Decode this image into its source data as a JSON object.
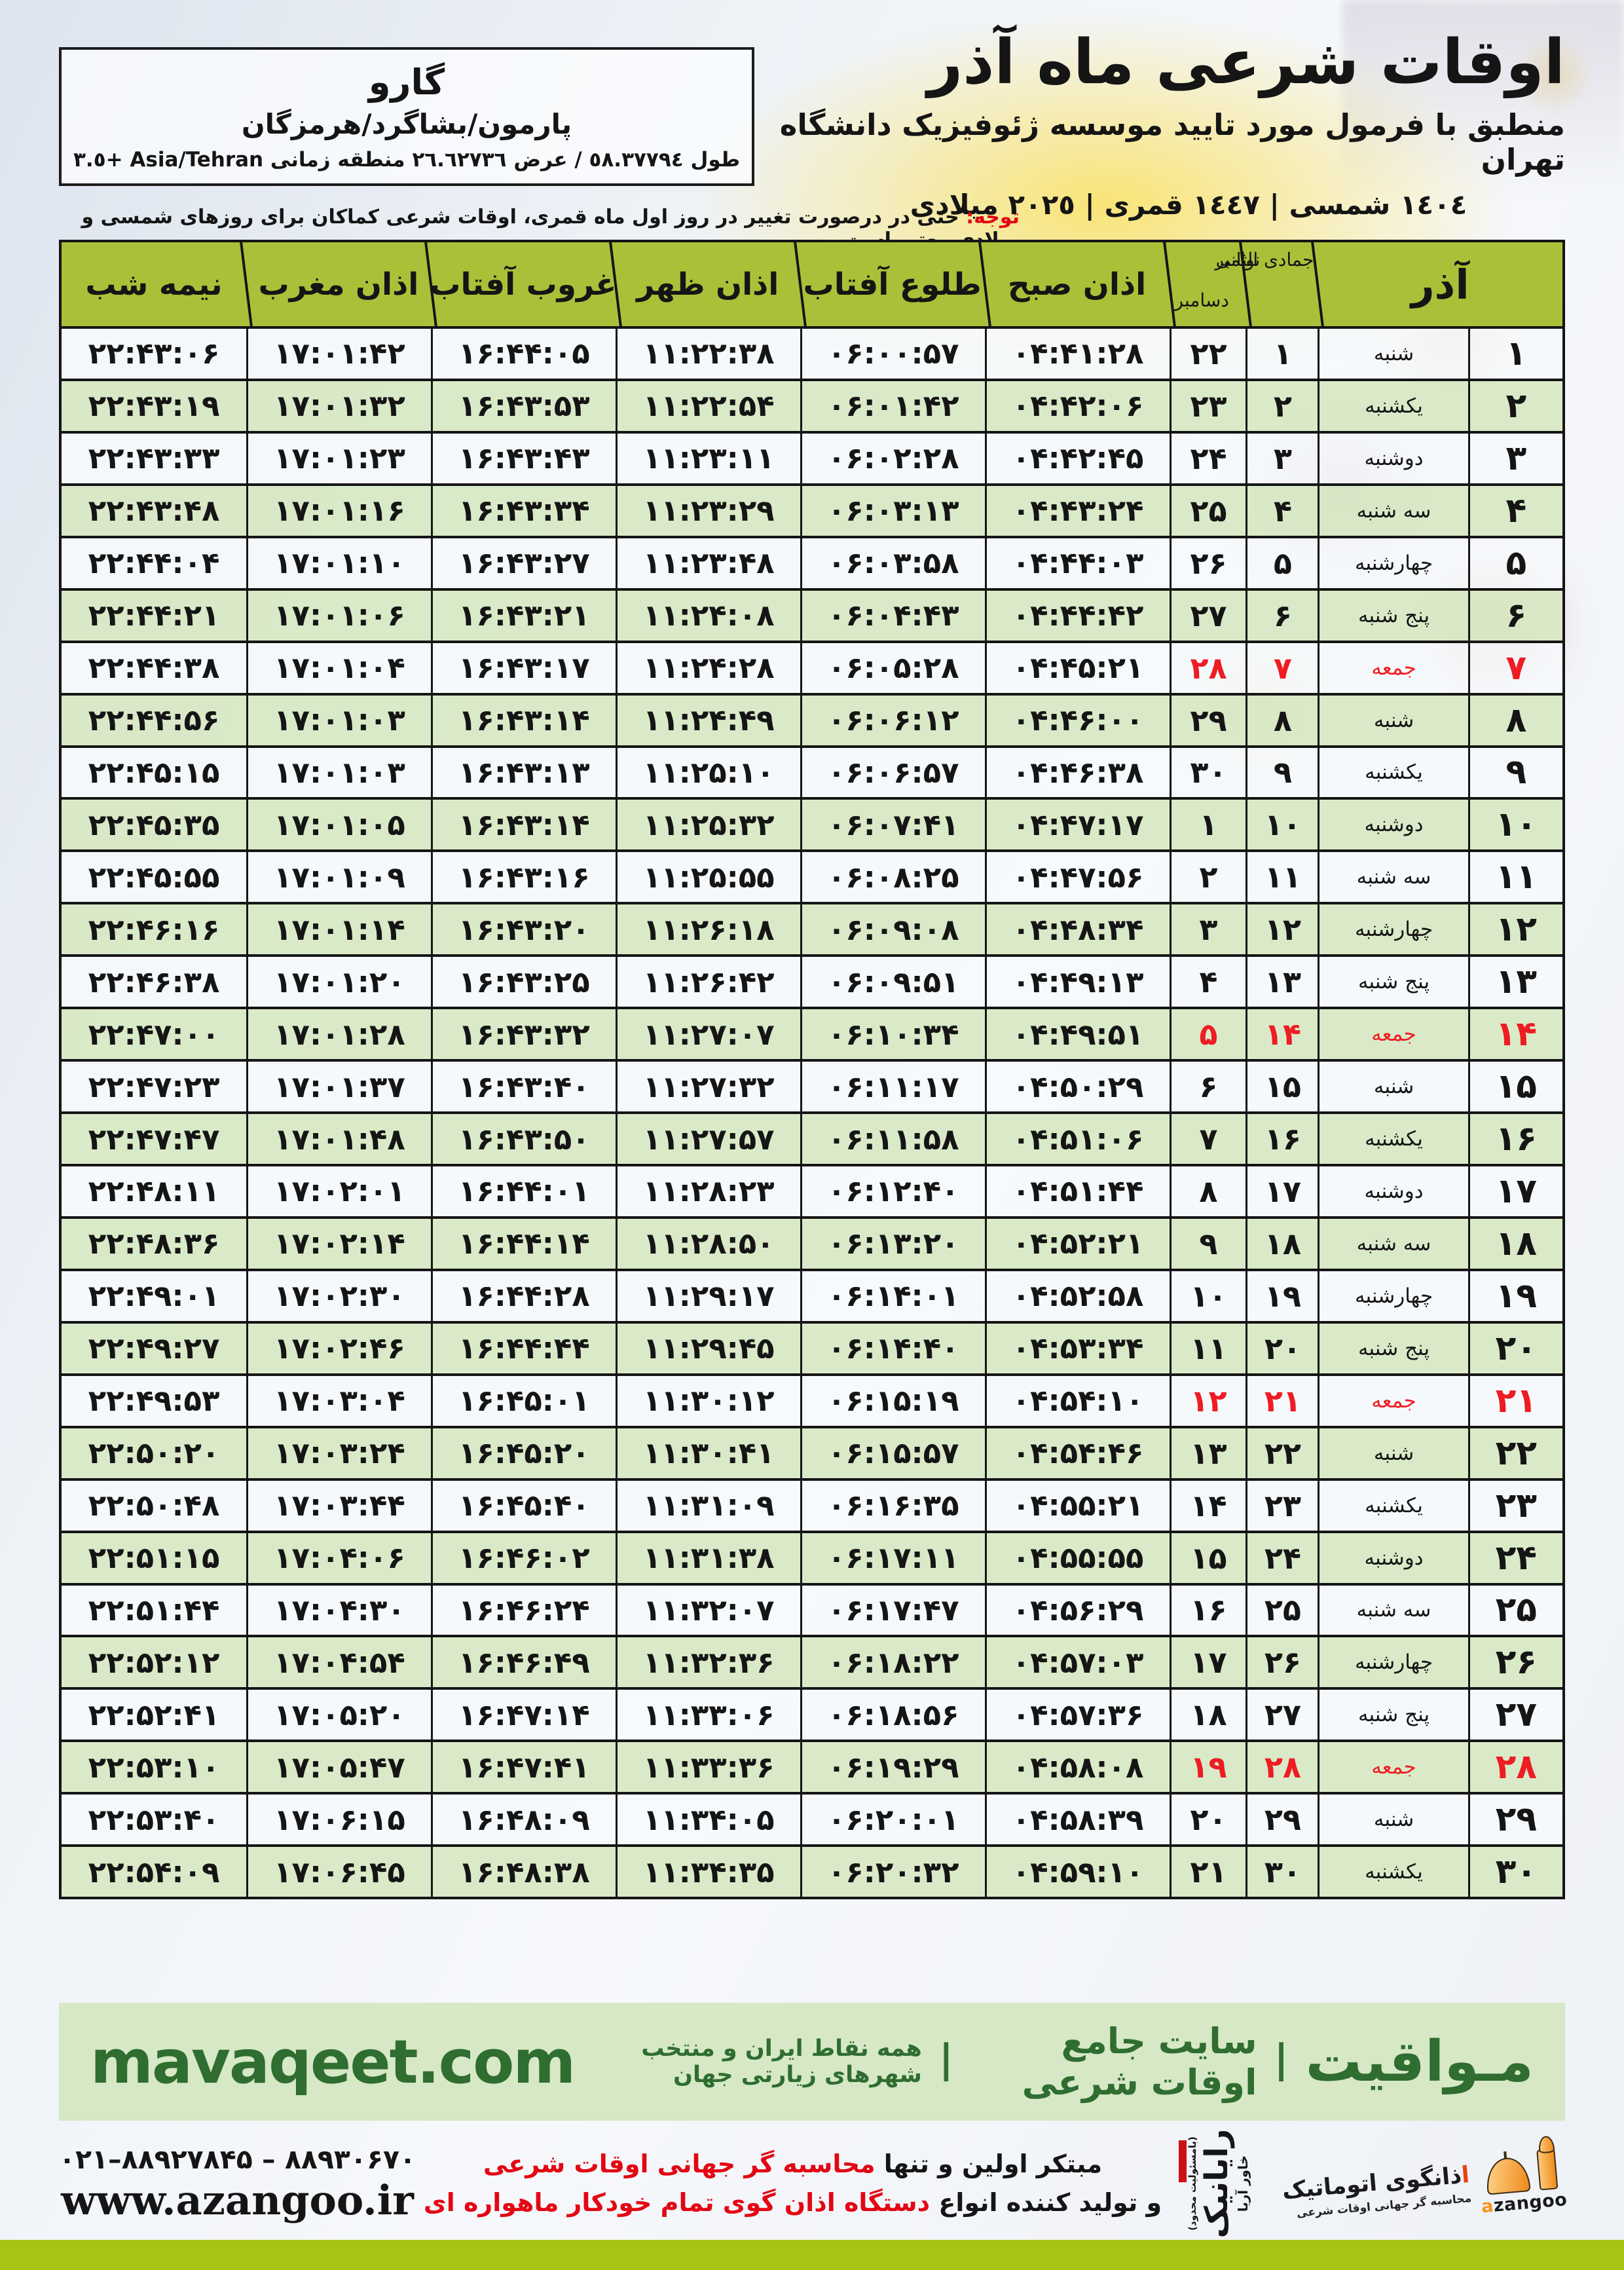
{
  "colors": {
    "header_green": "#a9c138",
    "row_green": "#d7e8c4",
    "friday_red": "#ee1c23",
    "banner_bg": "#d6e8c5",
    "banner_text": "#2f6d31",
    "bottom_bar_green": "#a6c414",
    "azangoo_orange": "#f7941d"
  },
  "header": {
    "title": "اوقات شرعی ماه آذر",
    "subtitle": "منطبق با فرمول مورد تایید موسسه ژئوفیزیک دانشگاه تهران",
    "date_line": "١٤٠٤ شمسی | ١٤٤٧ قمری | ٢٠٢٥ میلادی",
    "location_box": {
      "city": "گارو",
      "region": "پارمون/بشاگرد/هرمزگان",
      "coordinates": "طول ٥٨.٣٧٧٩٤ / عرض ٢٦.٦٢٧٣٦ منطقه زمانی Asia/Tehran +٣.٥"
    },
    "notice_label": "توجه:",
    "notice_text": " حتی در درصورت تغییر در روز اول ماه قمری، اوقات شرعی کماکان برای روزهای شمسی و میلادی معتبر است."
  },
  "table": {
    "headers": {
      "month": "آذر",
      "hijri": "جمادی الثانی",
      "greg_top": "نوامبر",
      "greg_bottom": "دسامبر",
      "sobh": "اذان صبح",
      "tolu": "طلوع آفتاب",
      "zohr": "اذان ظهر",
      "ghorub": "غروب آفتاب",
      "maghreb": "اذان مغرب",
      "nimeshab": "نیمه شب"
    },
    "rows": [
      {
        "azar": "۱",
        "weekday": "شنبه",
        "hijri": "۱",
        "greg": "۲۲",
        "sobh": "۰۴:۴۱:۲۸",
        "tolu": "۰۶:۰۰:۵۷",
        "zohr": "۱۱:۲۲:۳۸",
        "ghorub": "۱۶:۴۴:۰۵",
        "maghreb": "۱۷:۰۱:۴۲",
        "nimeshab": "۲۲:۴۳:۰۶",
        "friday": false
      },
      {
        "azar": "۲",
        "weekday": "یکشنبه",
        "hijri": "۲",
        "greg": "۲۳",
        "sobh": "۰۴:۴۲:۰۶",
        "tolu": "۰۶:۰۱:۴۲",
        "zohr": "۱۱:۲۲:۵۴",
        "ghorub": "۱۶:۴۳:۵۳",
        "maghreb": "۱۷:۰۱:۳۲",
        "nimeshab": "۲۲:۴۳:۱۹",
        "friday": false
      },
      {
        "azar": "۳",
        "weekday": "دوشنبه",
        "hijri": "۳",
        "greg": "۲۴",
        "sobh": "۰۴:۴۲:۴۵",
        "tolu": "۰۶:۰۲:۲۸",
        "zohr": "۱۱:۲۳:۱۱",
        "ghorub": "۱۶:۴۳:۴۳",
        "maghreb": "۱۷:۰۱:۲۳",
        "nimeshab": "۲۲:۴۳:۳۳",
        "friday": false
      },
      {
        "azar": "۴",
        "weekday": "سه شنبه",
        "hijri": "۴",
        "greg": "۲۵",
        "sobh": "۰۴:۴۳:۲۴",
        "tolu": "۰۶:۰۳:۱۳",
        "zohr": "۱۱:۲۳:۲۹",
        "ghorub": "۱۶:۴۳:۳۴",
        "maghreb": "۱۷:۰۱:۱۶",
        "nimeshab": "۲۲:۴۳:۴۸",
        "friday": false
      },
      {
        "azar": "۵",
        "weekday": "چهارشنبه",
        "hijri": "۵",
        "greg": "۲۶",
        "sobh": "۰۴:۴۴:۰۳",
        "tolu": "۰۶:۰۳:۵۸",
        "zohr": "۱۱:۲۳:۴۸",
        "ghorub": "۱۶:۴۳:۲۷",
        "maghreb": "۱۷:۰۱:۱۰",
        "nimeshab": "۲۲:۴۴:۰۴",
        "friday": false
      },
      {
        "azar": "۶",
        "weekday": "پنج شنبه",
        "hijri": "۶",
        "greg": "۲۷",
        "sobh": "۰۴:۴۴:۴۲",
        "tolu": "۰۶:۰۴:۴۳",
        "zohr": "۱۱:۲۴:۰۸",
        "ghorub": "۱۶:۴۳:۲۱",
        "maghreb": "۱۷:۰۱:۰۶",
        "nimeshab": "۲۲:۴۴:۲۱",
        "friday": false
      },
      {
        "azar": "۷",
        "weekday": "جمعه",
        "hijri": "۷",
        "greg": "۲۸",
        "sobh": "۰۴:۴۵:۲۱",
        "tolu": "۰۶:۰۵:۲۸",
        "zohr": "۱۱:۲۴:۲۸",
        "ghorub": "۱۶:۴۳:۱۷",
        "maghreb": "۱۷:۰۱:۰۴",
        "nimeshab": "۲۲:۴۴:۳۸",
        "friday": true
      },
      {
        "azar": "۸",
        "weekday": "شنبه",
        "hijri": "۸",
        "greg": "۲۹",
        "sobh": "۰۴:۴۶:۰۰",
        "tolu": "۰۶:۰۶:۱۲",
        "zohr": "۱۱:۲۴:۴۹",
        "ghorub": "۱۶:۴۳:۱۴",
        "maghreb": "۱۷:۰۱:۰۳",
        "nimeshab": "۲۲:۴۴:۵۶",
        "friday": false
      },
      {
        "azar": "۹",
        "weekday": "یکشنبه",
        "hijri": "۹",
        "greg": "۳۰",
        "sobh": "۰۴:۴۶:۳۸",
        "tolu": "۰۶:۰۶:۵۷",
        "zohr": "۱۱:۲۵:۱۰",
        "ghorub": "۱۶:۴۳:۱۳",
        "maghreb": "۱۷:۰۱:۰۳",
        "nimeshab": "۲۲:۴۵:۱۵",
        "friday": false
      },
      {
        "azar": "۱۰",
        "weekday": "دوشنبه",
        "hijri": "۱۰",
        "greg": "۱",
        "sobh": "۰۴:۴۷:۱۷",
        "tolu": "۰۶:۰۷:۴۱",
        "zohr": "۱۱:۲۵:۳۲",
        "ghorub": "۱۶:۴۳:۱۴",
        "maghreb": "۱۷:۰۱:۰۵",
        "nimeshab": "۲۲:۴۵:۳۵",
        "friday": false
      },
      {
        "azar": "۱۱",
        "weekday": "سه شنبه",
        "hijri": "۱۱",
        "greg": "۲",
        "sobh": "۰۴:۴۷:۵۶",
        "tolu": "۰۶:۰۸:۲۵",
        "zohr": "۱۱:۲۵:۵۵",
        "ghorub": "۱۶:۴۳:۱۶",
        "maghreb": "۱۷:۰۱:۰۹",
        "nimeshab": "۲۲:۴۵:۵۵",
        "friday": false
      },
      {
        "azar": "۱۲",
        "weekday": "چهارشنبه",
        "hijri": "۱۲",
        "greg": "۳",
        "sobh": "۰۴:۴۸:۳۴",
        "tolu": "۰۶:۰۹:۰۸",
        "zohr": "۱۱:۲۶:۱۸",
        "ghorub": "۱۶:۴۳:۲۰",
        "maghreb": "۱۷:۰۱:۱۴",
        "nimeshab": "۲۲:۴۶:۱۶",
        "friday": false
      },
      {
        "azar": "۱۳",
        "weekday": "پنج شنبه",
        "hijri": "۱۳",
        "greg": "۴",
        "sobh": "۰۴:۴۹:۱۳",
        "tolu": "۰۶:۰۹:۵۱",
        "zohr": "۱۱:۲۶:۴۲",
        "ghorub": "۱۶:۴۳:۲۵",
        "maghreb": "۱۷:۰۱:۲۰",
        "nimeshab": "۲۲:۴۶:۳۸",
        "friday": false
      },
      {
        "azar": "۱۴",
        "weekday": "جمعه",
        "hijri": "۱۴",
        "greg": "۵",
        "sobh": "۰۴:۴۹:۵۱",
        "tolu": "۰۶:۱۰:۳۴",
        "zohr": "۱۱:۲۷:۰۷",
        "ghorub": "۱۶:۴۳:۳۲",
        "maghreb": "۱۷:۰۱:۲۸",
        "nimeshab": "۲۲:۴۷:۰۰",
        "friday": true
      },
      {
        "azar": "۱۵",
        "weekday": "شنبه",
        "hijri": "۱۵",
        "greg": "۶",
        "sobh": "۰۴:۵۰:۲۹",
        "tolu": "۰۶:۱۱:۱۷",
        "zohr": "۱۱:۲۷:۳۲",
        "ghorub": "۱۶:۴۳:۴۰",
        "maghreb": "۱۷:۰۱:۳۷",
        "nimeshab": "۲۲:۴۷:۲۳",
        "friday": false
      },
      {
        "azar": "۱۶",
        "weekday": "یکشنبه",
        "hijri": "۱۶",
        "greg": "۷",
        "sobh": "۰۴:۵۱:۰۶",
        "tolu": "۰۶:۱۱:۵۸",
        "zohr": "۱۱:۲۷:۵۷",
        "ghorub": "۱۶:۴۳:۵۰",
        "maghreb": "۱۷:۰۱:۴۸",
        "nimeshab": "۲۲:۴۷:۴۷",
        "friday": false
      },
      {
        "azar": "۱۷",
        "weekday": "دوشنبه",
        "hijri": "۱۷",
        "greg": "۸",
        "sobh": "۰۴:۵۱:۴۴",
        "tolu": "۰۶:۱۲:۴۰",
        "zohr": "۱۱:۲۸:۲۳",
        "ghorub": "۱۶:۴۴:۰۱",
        "maghreb": "۱۷:۰۲:۰۱",
        "nimeshab": "۲۲:۴۸:۱۱",
        "friday": false
      },
      {
        "azar": "۱۸",
        "weekday": "سه شنبه",
        "hijri": "۱۸",
        "greg": "۹",
        "sobh": "۰۴:۵۲:۲۱",
        "tolu": "۰۶:۱۳:۲۰",
        "zohr": "۱۱:۲۸:۵۰",
        "ghorub": "۱۶:۴۴:۱۴",
        "maghreb": "۱۷:۰۲:۱۴",
        "nimeshab": "۲۲:۴۸:۳۶",
        "friday": false
      },
      {
        "azar": "۱۹",
        "weekday": "چهارشنبه",
        "hijri": "۱۹",
        "greg": "۱۰",
        "sobh": "۰۴:۵۲:۵۸",
        "tolu": "۰۶:۱۴:۰۱",
        "zohr": "۱۱:۲۹:۱۷",
        "ghorub": "۱۶:۴۴:۲۸",
        "maghreb": "۱۷:۰۲:۳۰",
        "nimeshab": "۲۲:۴۹:۰۱",
        "friday": false
      },
      {
        "azar": "۲۰",
        "weekday": "پنج شنبه",
        "hijri": "۲۰",
        "greg": "۱۱",
        "sobh": "۰۴:۵۳:۳۴",
        "tolu": "۰۶:۱۴:۴۰",
        "zohr": "۱۱:۲۹:۴۵",
        "ghorub": "۱۶:۴۴:۴۴",
        "maghreb": "۱۷:۰۲:۴۶",
        "nimeshab": "۲۲:۴۹:۲۷",
        "friday": false
      },
      {
        "azar": "۲۱",
        "weekday": "جمعه",
        "hijri": "۲۱",
        "greg": "۱۲",
        "sobh": "۰۴:۵۴:۱۰",
        "tolu": "۰۶:۱۵:۱۹",
        "zohr": "۱۱:۳۰:۱۲",
        "ghorub": "۱۶:۴۵:۰۱",
        "maghreb": "۱۷:۰۳:۰۴",
        "nimeshab": "۲۲:۴۹:۵۳",
        "friday": true
      },
      {
        "azar": "۲۲",
        "weekday": "شنبه",
        "hijri": "۲۲",
        "greg": "۱۳",
        "sobh": "۰۴:۵۴:۴۶",
        "tolu": "۰۶:۱۵:۵۷",
        "zohr": "۱۱:۳۰:۴۱",
        "ghorub": "۱۶:۴۵:۲۰",
        "maghreb": "۱۷:۰۳:۲۴",
        "nimeshab": "۲۲:۵۰:۲۰",
        "friday": false
      },
      {
        "azar": "۲۳",
        "weekday": "یکشنبه",
        "hijri": "۲۳",
        "greg": "۱۴",
        "sobh": "۰۴:۵۵:۲۱",
        "tolu": "۰۶:۱۶:۳۵",
        "zohr": "۱۱:۳۱:۰۹",
        "ghorub": "۱۶:۴۵:۴۰",
        "maghreb": "۱۷:۰۳:۴۴",
        "nimeshab": "۲۲:۵۰:۴۸",
        "friday": false
      },
      {
        "azar": "۲۴",
        "weekday": "دوشنبه",
        "hijri": "۲۴",
        "greg": "۱۵",
        "sobh": "۰۴:۵۵:۵۵",
        "tolu": "۰۶:۱۷:۱۱",
        "zohr": "۱۱:۳۱:۳۸",
        "ghorub": "۱۶:۴۶:۰۲",
        "maghreb": "۱۷:۰۴:۰۶",
        "nimeshab": "۲۲:۵۱:۱۵",
        "friday": false
      },
      {
        "azar": "۲۵",
        "weekday": "سه شنبه",
        "hijri": "۲۵",
        "greg": "۱۶",
        "sobh": "۰۴:۵۶:۲۹",
        "tolu": "۰۶:۱۷:۴۷",
        "zohr": "۱۱:۳۲:۰۷",
        "ghorub": "۱۶:۴۶:۲۴",
        "maghreb": "۱۷:۰۴:۳۰",
        "nimeshab": "۲۲:۵۱:۴۴",
        "friday": false
      },
      {
        "azar": "۲۶",
        "weekday": "چهارشنبه",
        "hijri": "۲۶",
        "greg": "۱۷",
        "sobh": "۰۴:۵۷:۰۳",
        "tolu": "۰۶:۱۸:۲۲",
        "zohr": "۱۱:۳۲:۳۶",
        "ghorub": "۱۶:۴۶:۴۹",
        "maghreb": "۱۷:۰۴:۵۴",
        "nimeshab": "۲۲:۵۲:۱۲",
        "friday": false
      },
      {
        "azar": "۲۷",
        "weekday": "پنج شنبه",
        "hijri": "۲۷",
        "greg": "۱۸",
        "sobh": "۰۴:۵۷:۳۶",
        "tolu": "۰۶:۱۸:۵۶",
        "zohr": "۱۱:۳۳:۰۶",
        "ghorub": "۱۶:۴۷:۱۴",
        "maghreb": "۱۷:۰۵:۲۰",
        "nimeshab": "۲۲:۵۲:۴۱",
        "friday": false
      },
      {
        "azar": "۲۸",
        "weekday": "جمعه",
        "hijri": "۲۸",
        "greg": "۱۹",
        "sobh": "۰۴:۵۸:۰۸",
        "tolu": "۰۶:۱۹:۲۹",
        "zohr": "۱۱:۳۳:۳۶",
        "ghorub": "۱۶:۴۷:۴۱",
        "maghreb": "۱۷:۰۵:۴۷",
        "nimeshab": "۲۲:۵۳:۱۰",
        "friday": true
      },
      {
        "azar": "۲۹",
        "weekday": "شنبه",
        "hijri": "۲۹",
        "greg": "۲۰",
        "sobh": "۰۴:۵۸:۳۹",
        "tolu": "۰۶:۲۰:۰۱",
        "zohr": "۱۱:۳۴:۰۵",
        "ghorub": "۱۶:۴۸:۰۹",
        "maghreb": "۱۷:۰۶:۱۵",
        "nimeshab": "۲۲:۵۳:۴۰",
        "friday": false
      },
      {
        "azar": "۳۰",
        "weekday": "یکشنبه",
        "hijri": "۳۰",
        "greg": "۲۱",
        "sobh": "۰۴:۵۹:۱۰",
        "tolu": "۰۶:۲۰:۳۲",
        "zohr": "۱۱:۳۴:۳۵",
        "ghorub": "۱۶:۴۸:۳۸",
        "maghreb": "۱۷:۰۶:۴۵",
        "nimeshab": "۲۲:۵۴:۰۹",
        "friday": false
      }
    ]
  },
  "footer": {
    "mavaqeet": {
      "brand": "مـواقیت",
      "sep1": "|",
      "tagline1": "سایت جامع اوقات شرعی",
      "sep2": "|",
      "tagline2": "همه نقاط ایران و منتخب شهرهای زیارتی جهان",
      "url": "mavaqeet.com"
    },
    "slogan": {
      "line1_black": "مبتکر اولین و تنها ",
      "line1_red": "محاسبه گر جهانی اوقات شرعی",
      "line2_black": "و تولید کننده انواع ",
      "line2_red": "دستگاه اذان گوی تمام خودکار ماهواره ای"
    },
    "rayanik": {
      "note": "(بامسئولیت محدود)",
      "name": "رایانیک",
      "sub": "خاور آریا"
    },
    "azangoo": {
      "fa_accent": "ا",
      "fa_rest": "ذانگوی اتوماتیک",
      "fa_sub": "محاسبه گر جهانی اوقات شرعی",
      "en_accent": "a",
      "en_rest": "zangoo"
    },
    "contact": {
      "phones": "۰۲۱–۸۸۹۲۷۸۴۵ – ۸۸۹۳۰۶۷۰",
      "website": "www.azangoo.ir"
    }
  }
}
